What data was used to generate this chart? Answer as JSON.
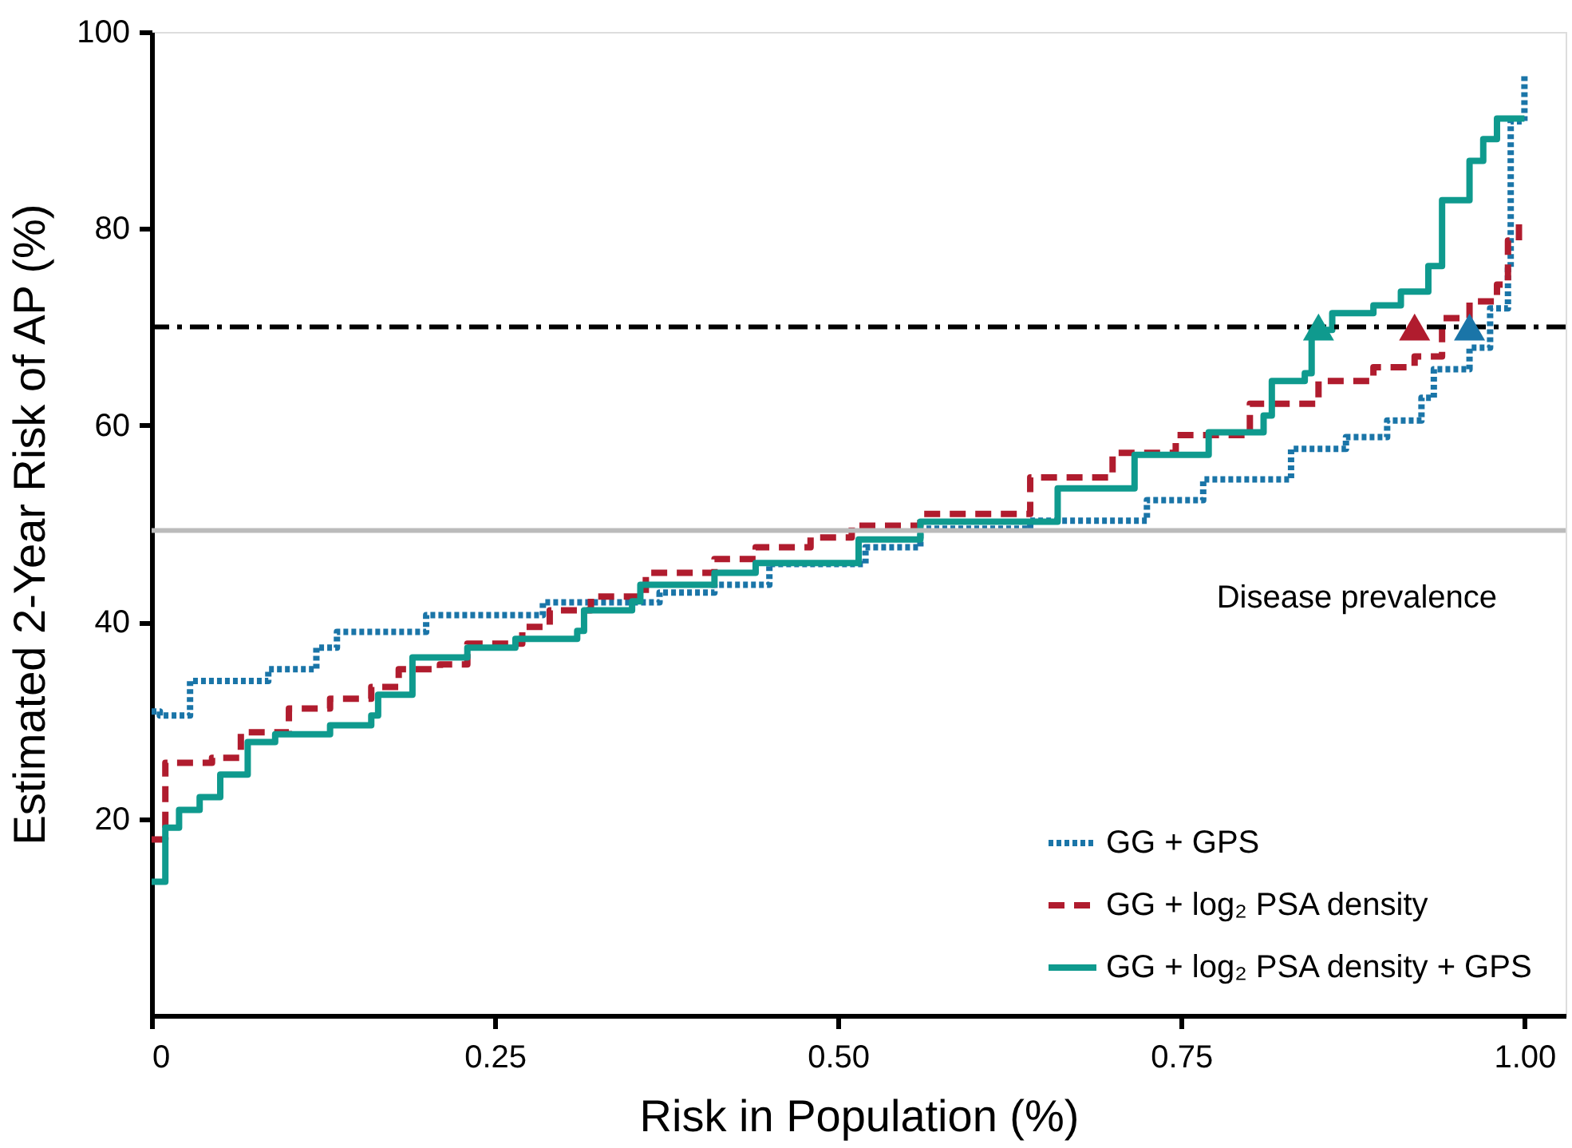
{
  "chart_data": {
    "type": "step",
    "xlabel": "Risk in Population (%)",
    "ylabel": "Estimated 2-Year Risk of AP (%)",
    "xlim": [
      0,
      1.03
    ],
    "ylim": [
      0,
      100
    ],
    "xticks": [
      0,
      {
        "value": 0.25,
        "label": "0.25"
      },
      {
        "value": 0.5,
        "label": "0.50"
      },
      {
        "value": 0.75,
        "label": "0.75"
      },
      {
        "value": 1,
        "label": "1.00"
      }
    ],
    "yticks": [
      20,
      40,
      60,
      80,
      100
    ],
    "grid": false,
    "legend": "bottom right",
    "marker": "none",
    "series": [
      {
        "name": "GG + GPS",
        "color": "#1a75a8",
        "line_style": "dotted",
        "x": [
          0,
          0.006,
          0.028,
          0.085,
          0.12,
          0.135,
          0.2,
          0.285,
          0.37,
          0.41,
          0.45,
          0.52,
          0.56,
          0.64,
          0.725,
          0.766,
          0.83,
          0.87,
          0.9,
          0.925,
          0.934,
          0.96,
          0.975,
          0.988,
          0.99,
          1.0
        ],
        "values": [
          30.9,
          30.5,
          34,
          35.2,
          37.4,
          39,
          40.7,
          42,
          43,
          43.8,
          45.9,
          47.6,
          49.5,
          50.3,
          52.4,
          54.5,
          57.6,
          58.8,
          60.5,
          62.8,
          65.7,
          67.9,
          71.9,
          76,
          90.9,
          95.5
        ]
      },
      {
        "name": "GG + log₂ PSA density",
        "color": "#b01c2e",
        "line_style": "dashed",
        "x": [
          0,
          0.01,
          0.044,
          0.065,
          0.1,
          0.13,
          0.16,
          0.18,
          0.21,
          0.23,
          0.27,
          0.29,
          0.32,
          0.36,
          0.41,
          0.44,
          0.48,
          0.51,
          0.56,
          0.64,
          0.7,
          0.746,
          0.8,
          0.85,
          0.89,
          0.92,
          0.94,
          0.96,
          0.98,
          0.988,
          0.996
        ],
        "values": [
          17.9,
          25.7,
          26.2,
          28.8,
          31.2,
          32.2,
          33.4,
          35.2,
          35.7,
          37.8,
          39.5,
          41.2,
          42.6,
          45,
          46.4,
          47.6,
          48.6,
          49.8,
          51,
          54.7,
          57.2,
          59,
          62.2,
          64.5,
          65.9,
          67,
          70.9,
          72.6,
          74.3,
          78.8,
          80.5
        ]
      },
      {
        "name": "GG + log₂ PSA density + GPS",
        "color": "#0f9a8e",
        "line_style": "solid",
        "x": [
          0,
          0.01,
          0.02,
          0.035,
          0.05,
          0.07,
          0.09,
          0.13,
          0.16,
          0.165,
          0.19,
          0.23,
          0.265,
          0.31,
          0.315,
          0.35,
          0.356,
          0.41,
          0.44,
          0.515,
          0.56,
          0.66,
          0.716,
          0.77,
          0.81,
          0.816,
          0.84,
          0.845,
          0.86,
          0.89,
          0.91,
          0.93,
          0.94,
          0.96,
          0.97,
          0.98,
          1.0
        ],
        "values": [
          13.6,
          19.1,
          20.9,
          22.2,
          24.5,
          27.8,
          28.6,
          29.5,
          30.5,
          32.6,
          36.4,
          37.4,
          38.3,
          39.1,
          41.2,
          42.1,
          43.8,
          45,
          46,
          48.4,
          50.2,
          53.6,
          57,
          59.3,
          61,
          64.5,
          65.3,
          69.7,
          71.4,
          72.2,
          73.6,
          76.2,
          82.9,
          86.9,
          89.1,
          91.2,
          91.2
        ]
      },
      {
        "type": "scatter",
        "marker": "triangle",
        "color": "#0f9a8e",
        "x": [
          0.85
        ],
        "values": [
          70
        ]
      },
      {
        "type": "scatter",
        "marker": "triangle",
        "color": "#b01c2e",
        "x": [
          0.92
        ],
        "values": [
          70
        ]
      },
      {
        "type": "scatter",
        "marker": "triangle",
        "color": "#1a75a8",
        "x": [
          0.96
        ],
        "values": [
          70
        ]
      }
    ],
    "ref_lines": [
      {
        "axis": "y",
        "value": 70,
        "color": "#000000",
        "line_style": "dashdot"
      },
      {
        "axis": "y",
        "value": 49.3,
        "color": "#bbbbbb",
        "line_style": "solid"
      }
    ],
    "annotations": [
      {
        "text": "Disease prevalence",
        "x": 0.95,
        "y": 49.3
      }
    ]
  }
}
